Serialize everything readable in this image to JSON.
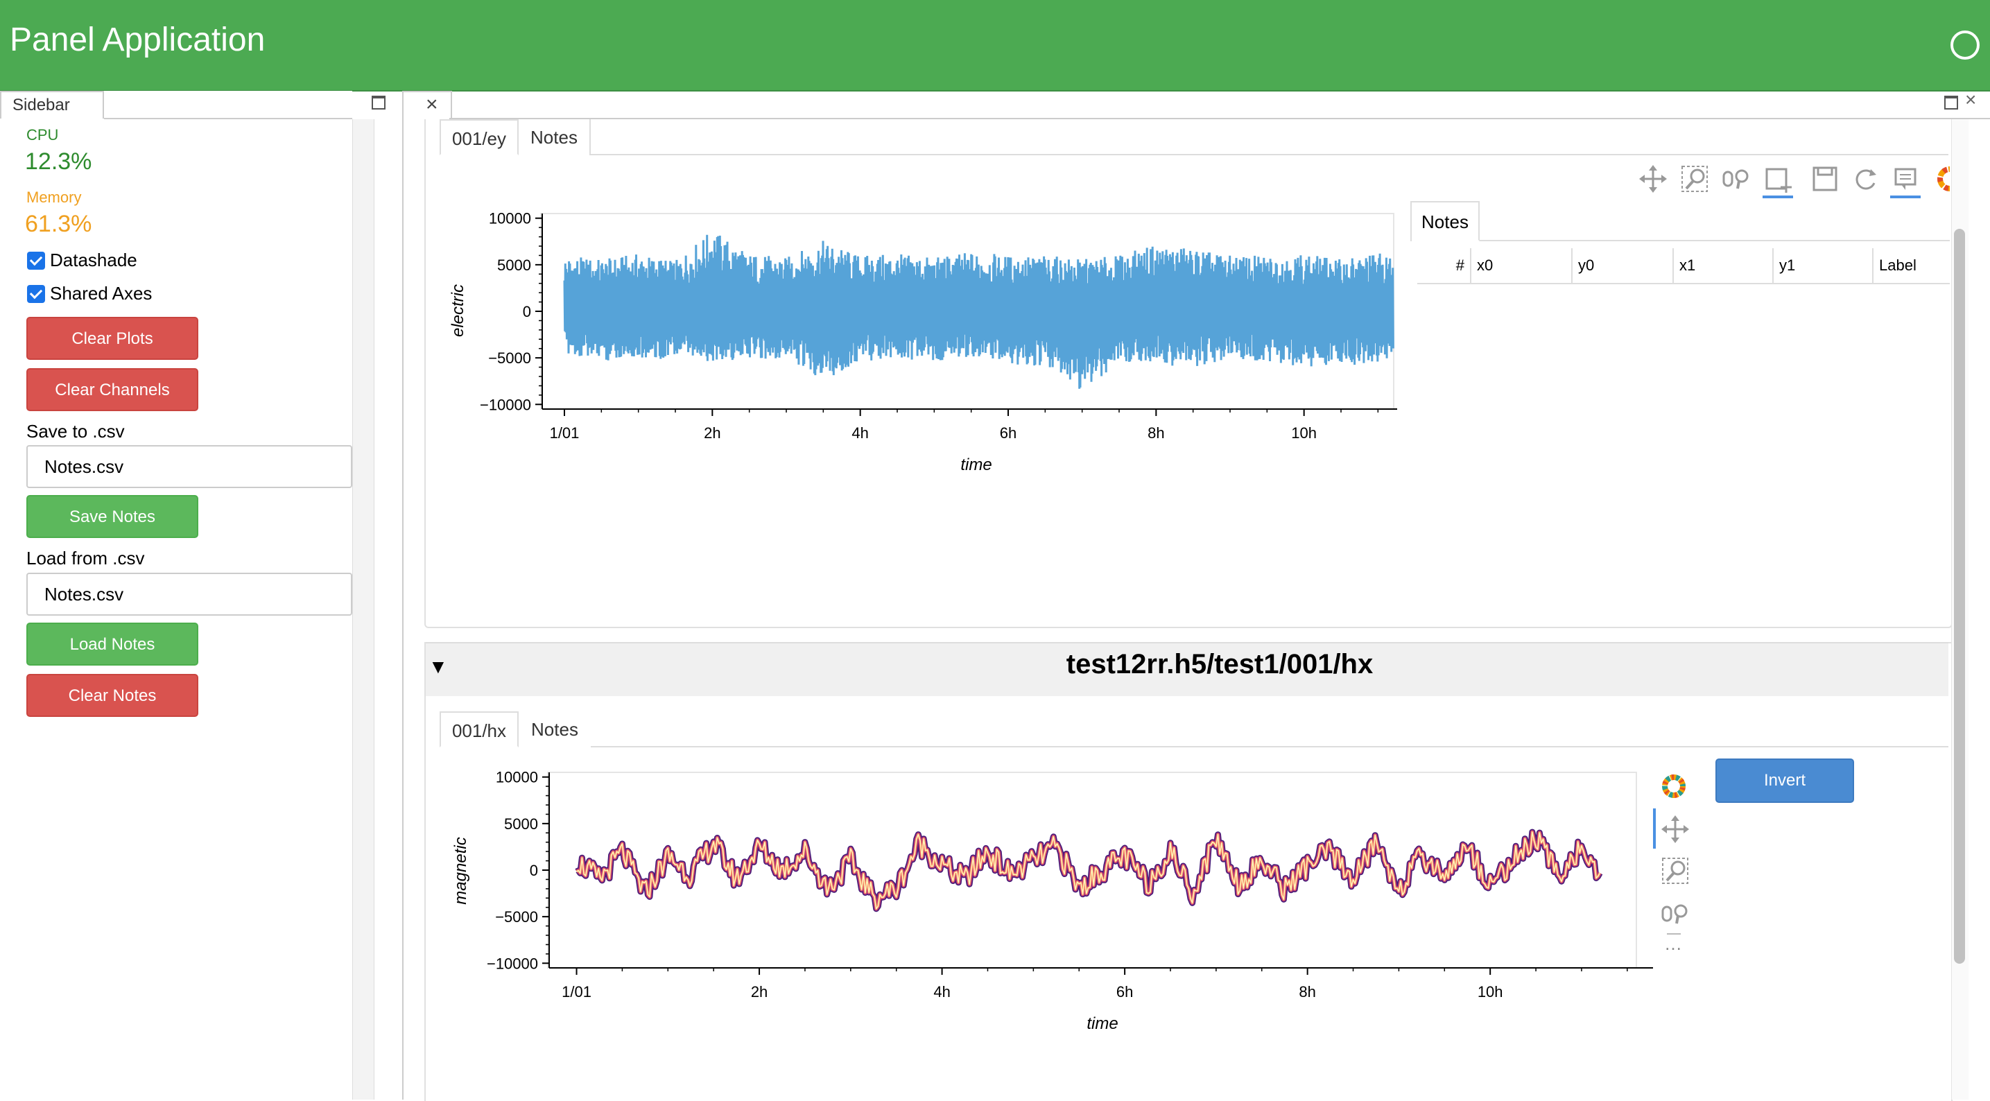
{
  "app": {
    "title": "Panel Application"
  },
  "sidebar": {
    "tab_label": "Sidebar",
    "cpu": {
      "label": "CPU",
      "value": "12.3%",
      "color": "#2e8b2e"
    },
    "memory": {
      "label": "Memory",
      "value": "61.3%",
      "color": "#f0a020"
    },
    "checkboxes": [
      {
        "label": "Datashade",
        "checked": true
      },
      {
        "label": "Shared Axes",
        "checked": true
      }
    ],
    "buttons": {
      "clear_plots": "Clear Plots",
      "clear_channels": "Clear Channels",
      "save_notes": "Save Notes",
      "load_notes": "Load Notes",
      "clear_notes": "Clear Notes"
    },
    "save": {
      "label": "Save to .csv",
      "value": "Notes.csv"
    },
    "load": {
      "label": "Load from .csv",
      "value": "Notes.csv"
    }
  },
  "main": {
    "close_glyph": "×",
    "max_glyph": "",
    "panel_close_glyph": "×",
    "card1": {
      "tabs": [
        "001/ey",
        "Notes"
      ],
      "active_tab": 0,
      "toolbar": [
        "pan-icon",
        "box-zoom-icon",
        "wheel-zoom-icon",
        "box-edit-icon",
        "save-icon",
        "reset-icon",
        "hover-icon",
        "bokeh-logo"
      ],
      "notes": {
        "tab_label": "Notes",
        "columns": [
          "#",
          "x0",
          "y0",
          "x1",
          "y1",
          "Label"
        ],
        "rows": []
      }
    },
    "card2": {
      "caret": "▼",
      "title": "test12rr.h5/test1/001/hx",
      "tabs": [
        "001/hx",
        "Notes"
      ],
      "active_tab": 0,
      "toolbar": [
        "bokeh-logo",
        "pan-icon",
        "box-zoom-icon",
        "wheel-zoom-icon",
        "more-icon"
      ],
      "more_glyph": "…",
      "invert_label": "Invert"
    }
  },
  "chart_data": [
    {
      "type": "line",
      "xlabel": "time",
      "ylabel": "electric",
      "x_ticks": [
        "1/01",
        "2h",
        "4h",
        "6h",
        "8h",
        "10h"
      ],
      "x_tick_hours": [
        0,
        2,
        4,
        6,
        8,
        10
      ],
      "x_range_hours": [
        -0.3,
        11.4
      ],
      "ylim": [
        -10500,
        10500
      ],
      "y_ticks": [
        10000,
        5000,
        0,
        -5000,
        -10000
      ],
      "y_tick_labels": [
        "10000",
        "5000",
        "0",
        "−5000",
        "−10000"
      ],
      "color": "#56a3d8",
      "series": [
        {
          "x_hours": [
            0,
            0.5,
            1,
            1.5,
            2,
            2.5,
            3,
            3.5,
            4,
            4.5,
            5,
            5.5,
            6,
            6.5,
            7,
            7.5,
            8,
            8.5,
            9,
            9.5,
            10,
            10.5,
            11,
            11.2
          ],
          "max": [
            6000,
            5600,
            6200,
            5400,
            8800,
            6200,
            5800,
            7600,
            6000,
            6200,
            5800,
            6400,
            6000,
            6000,
            5600,
            6000,
            7200,
            6800,
            6000,
            6000,
            6200,
            5600,
            6400,
            5800
          ],
          "min": [
            -4600,
            -5400,
            -5000,
            -5200,
            -5600,
            -5000,
            -5200,
            -7400,
            -5400,
            -5000,
            -5600,
            -4800,
            -5800,
            -6000,
            -8800,
            -5400,
            -5600,
            -6200,
            -5000,
            -5400,
            -6000,
            -5600,
            -6000,
            -4400
          ]
        }
      ]
    },
    {
      "type": "line",
      "xlabel": "time",
      "ylabel": "magnetic",
      "x_ticks": [
        "1/01",
        "2h",
        "4h",
        "6h",
        "8h",
        "10h"
      ],
      "x_tick_hours": [
        0,
        2,
        4,
        6,
        8,
        10
      ],
      "x_range_hours": [
        -0.3,
        11.6
      ],
      "ylim": [
        -10500,
        10500
      ],
      "y_ticks": [
        10000,
        5000,
        0,
        -5000,
        -10000
      ],
      "y_tick_labels": [
        "10000",
        "5000",
        "0",
        "−5000",
        "−10000"
      ],
      "colors": [
        "#3b0f70",
        "#b73779",
        "#fc8961",
        "#fcfdbf"
      ],
      "series": [
        {
          "x_hours": [
            0,
            0.25,
            0.5,
            0.75,
            1,
            1.25,
            1.5,
            1.75,
            2,
            2.25,
            2.5,
            2.75,
            3,
            3.25,
            3.5,
            3.75,
            4,
            4.25,
            4.5,
            4.75,
            5,
            5.25,
            5.5,
            5.75,
            6,
            6.25,
            6.5,
            6.75,
            7,
            7.25,
            7.5,
            7.75,
            8,
            8.25,
            8.5,
            8.75,
            9,
            9.25,
            9.5,
            9.75,
            10,
            10.25,
            10.5,
            10.75,
            11,
            11.2
          ],
          "y": [
            1000,
            -1000,
            2000,
            -2500,
            1500,
            -500,
            3000,
            -1000,
            2500,
            0,
            2000,
            -2000,
            1000,
            -3000,
            -2000,
            3000,
            500,
            -1000,
            2000,
            -500,
            1000,
            2500,
            -2000,
            0,
            1500,
            -1500,
            2000,
            -2500,
            3500,
            -1500,
            1000,
            -2000,
            500,
            2000,
            -1000,
            3000,
            -2000,
            1500,
            -500,
            2500,
            -1500,
            1000,
            3500,
            -500,
            2500,
            -1500
          ]
        }
      ]
    }
  ]
}
